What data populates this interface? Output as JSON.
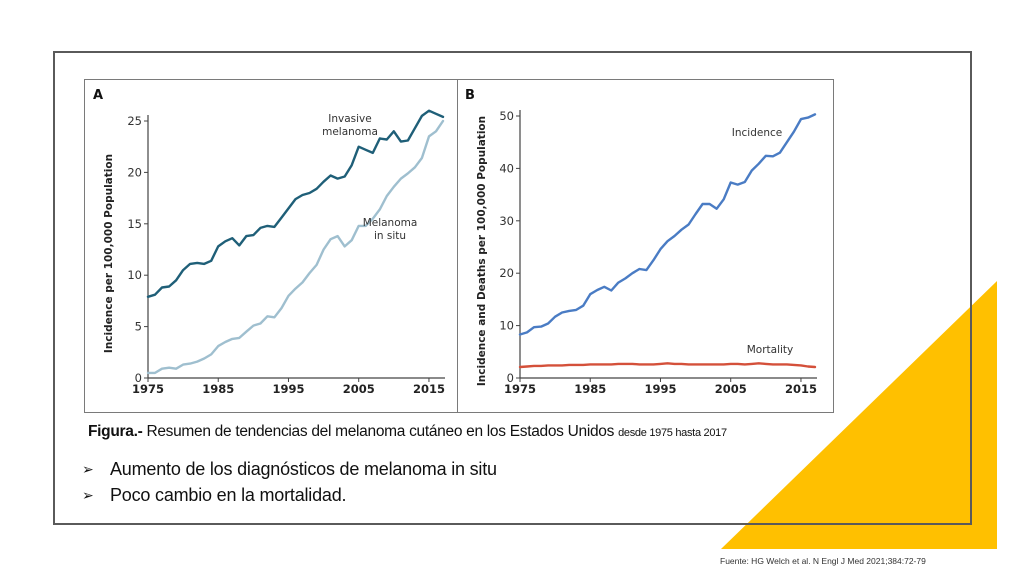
{
  "slide": {
    "caption_bold": "Figura.-",
    "caption_text": " Resumen de tendencias del melanoma cutáneo en los Estados Unidos ",
    "caption_small": "desde 1975 hasta 2017",
    "bullets": [
      "Aumento  de los diagnósticos de melanoma in situ",
      "Poco cambio en la mortalidad."
    ],
    "bullet_icon": "arrowhead-bullet-icon",
    "source": "Fuente: HG Welch et al. N Engl J Med 2021;384:72-79",
    "accent_color": "#FFC000"
  },
  "chart_data": [
    {
      "type": "line",
      "panel": "A",
      "ylabel": "Incidence per 100,000 Population",
      "xlabel": "",
      "xlim": [
        1975,
        2017
      ],
      "ylim": [
        0,
        25
      ],
      "x_ticks": [
        1975,
        1985,
        1995,
        2005,
        2015
      ],
      "y_ticks": [
        0,
        5,
        10,
        15,
        20,
        25
      ],
      "grid": false,
      "x": [
        1975,
        1976,
        1977,
        1978,
        1979,
        1980,
        1981,
        1982,
        1983,
        1984,
        1985,
        1986,
        1987,
        1988,
        1989,
        1990,
        1991,
        1992,
        1993,
        1994,
        1995,
        1996,
        1997,
        1998,
        1999,
        2000,
        2001,
        2002,
        2003,
        2004,
        2005,
        2006,
        2007,
        2008,
        2009,
        2010,
        2011,
        2012,
        2013,
        2014,
        2015,
        2016,
        2017
      ],
      "series": [
        {
          "name": "Invasive melanoma",
          "label_lines": [
            "Invasive",
            "melanoma"
          ],
          "color": "#1f5f78",
          "values": [
            7.9,
            8.1,
            8.8,
            8.9,
            9.5,
            10.5,
            11.1,
            11.2,
            11.1,
            11.4,
            12.8,
            13.3,
            13.6,
            12.9,
            13.8,
            13.9,
            14.6,
            14.8,
            14.7,
            15.6,
            16.5,
            17.4,
            17.8,
            18.0,
            18.4,
            19.1,
            19.7,
            19.4,
            19.6,
            20.7,
            22.5,
            22.2,
            21.9,
            23.3,
            23.2,
            24.0,
            23.0,
            23.1,
            24.3,
            25.5,
            26.0,
            25.7,
            25.4
          ]
        },
        {
          "name": "Melanoma in situ",
          "label_lines": [
            "Melanoma",
            "in situ"
          ],
          "color": "#9fbfcf",
          "values": [
            0.5,
            0.5,
            0.9,
            1.0,
            0.9,
            1.3,
            1.4,
            1.6,
            1.9,
            2.3,
            3.1,
            3.5,
            3.8,
            3.9,
            4.5,
            5.1,
            5.3,
            6.0,
            5.9,
            6.8,
            8.0,
            8.7,
            9.3,
            10.2,
            11.0,
            12.5,
            13.5,
            13.8,
            12.8,
            13.4,
            14.8,
            14.8,
            15.5,
            16.4,
            17.7,
            18.6,
            19.4,
            19.9,
            20.5,
            21.4,
            23.5,
            24.0,
            25.0
          ]
        }
      ]
    },
    {
      "type": "line",
      "panel": "B",
      "ylabel": "Incidence and Deaths per 100,000 Population",
      "xlabel": "",
      "xlim": [
        1975,
        2017
      ],
      "ylim": [
        0,
        50
      ],
      "x_ticks": [
        1975,
        1985,
        1995,
        2005,
        2015
      ],
      "y_ticks": [
        0,
        10,
        20,
        30,
        40,
        50
      ],
      "grid": false,
      "x": [
        1975,
        1976,
        1977,
        1978,
        1979,
        1980,
        1981,
        1982,
        1983,
        1984,
        1985,
        1986,
        1987,
        1988,
        1989,
        1990,
        1991,
        1992,
        1993,
        1994,
        1995,
        1996,
        1997,
        1998,
        1999,
        2000,
        2001,
        2002,
        2003,
        2004,
        2005,
        2006,
        2007,
        2008,
        2009,
        2010,
        2011,
        2012,
        2013,
        2014,
        2015,
        2016,
        2017
      ],
      "series": [
        {
          "name": "Incidence",
          "label_lines": [
            "Incidence"
          ],
          "color": "#4a7cc4",
          "values": [
            8.3,
            8.7,
            9.7,
            9.8,
            10.4,
            11.7,
            12.5,
            12.8,
            13.0,
            13.8,
            16.0,
            16.8,
            17.4,
            16.7,
            18.2,
            19.0,
            20.0,
            20.8,
            20.6,
            22.5,
            24.6,
            26.1,
            27.1,
            28.3,
            29.3,
            31.3,
            33.2,
            33.2,
            32.3,
            34.1,
            37.3,
            36.9,
            37.4,
            39.6,
            40.9,
            42.4,
            42.3,
            43.0,
            45.0,
            47.0,
            49.4,
            49.7,
            50.3
          ]
        },
        {
          "name": "Mortality",
          "label_lines": [
            "Mortality"
          ],
          "color": "#d4503a",
          "values": [
            2.1,
            2.2,
            2.3,
            2.3,
            2.4,
            2.4,
            2.4,
            2.5,
            2.5,
            2.5,
            2.6,
            2.6,
            2.6,
            2.6,
            2.7,
            2.7,
            2.7,
            2.6,
            2.6,
            2.6,
            2.7,
            2.8,
            2.7,
            2.7,
            2.6,
            2.6,
            2.6,
            2.6,
            2.6,
            2.6,
            2.7,
            2.7,
            2.6,
            2.7,
            2.8,
            2.7,
            2.6,
            2.6,
            2.6,
            2.5,
            2.4,
            2.2,
            2.1
          ]
        }
      ]
    }
  ]
}
